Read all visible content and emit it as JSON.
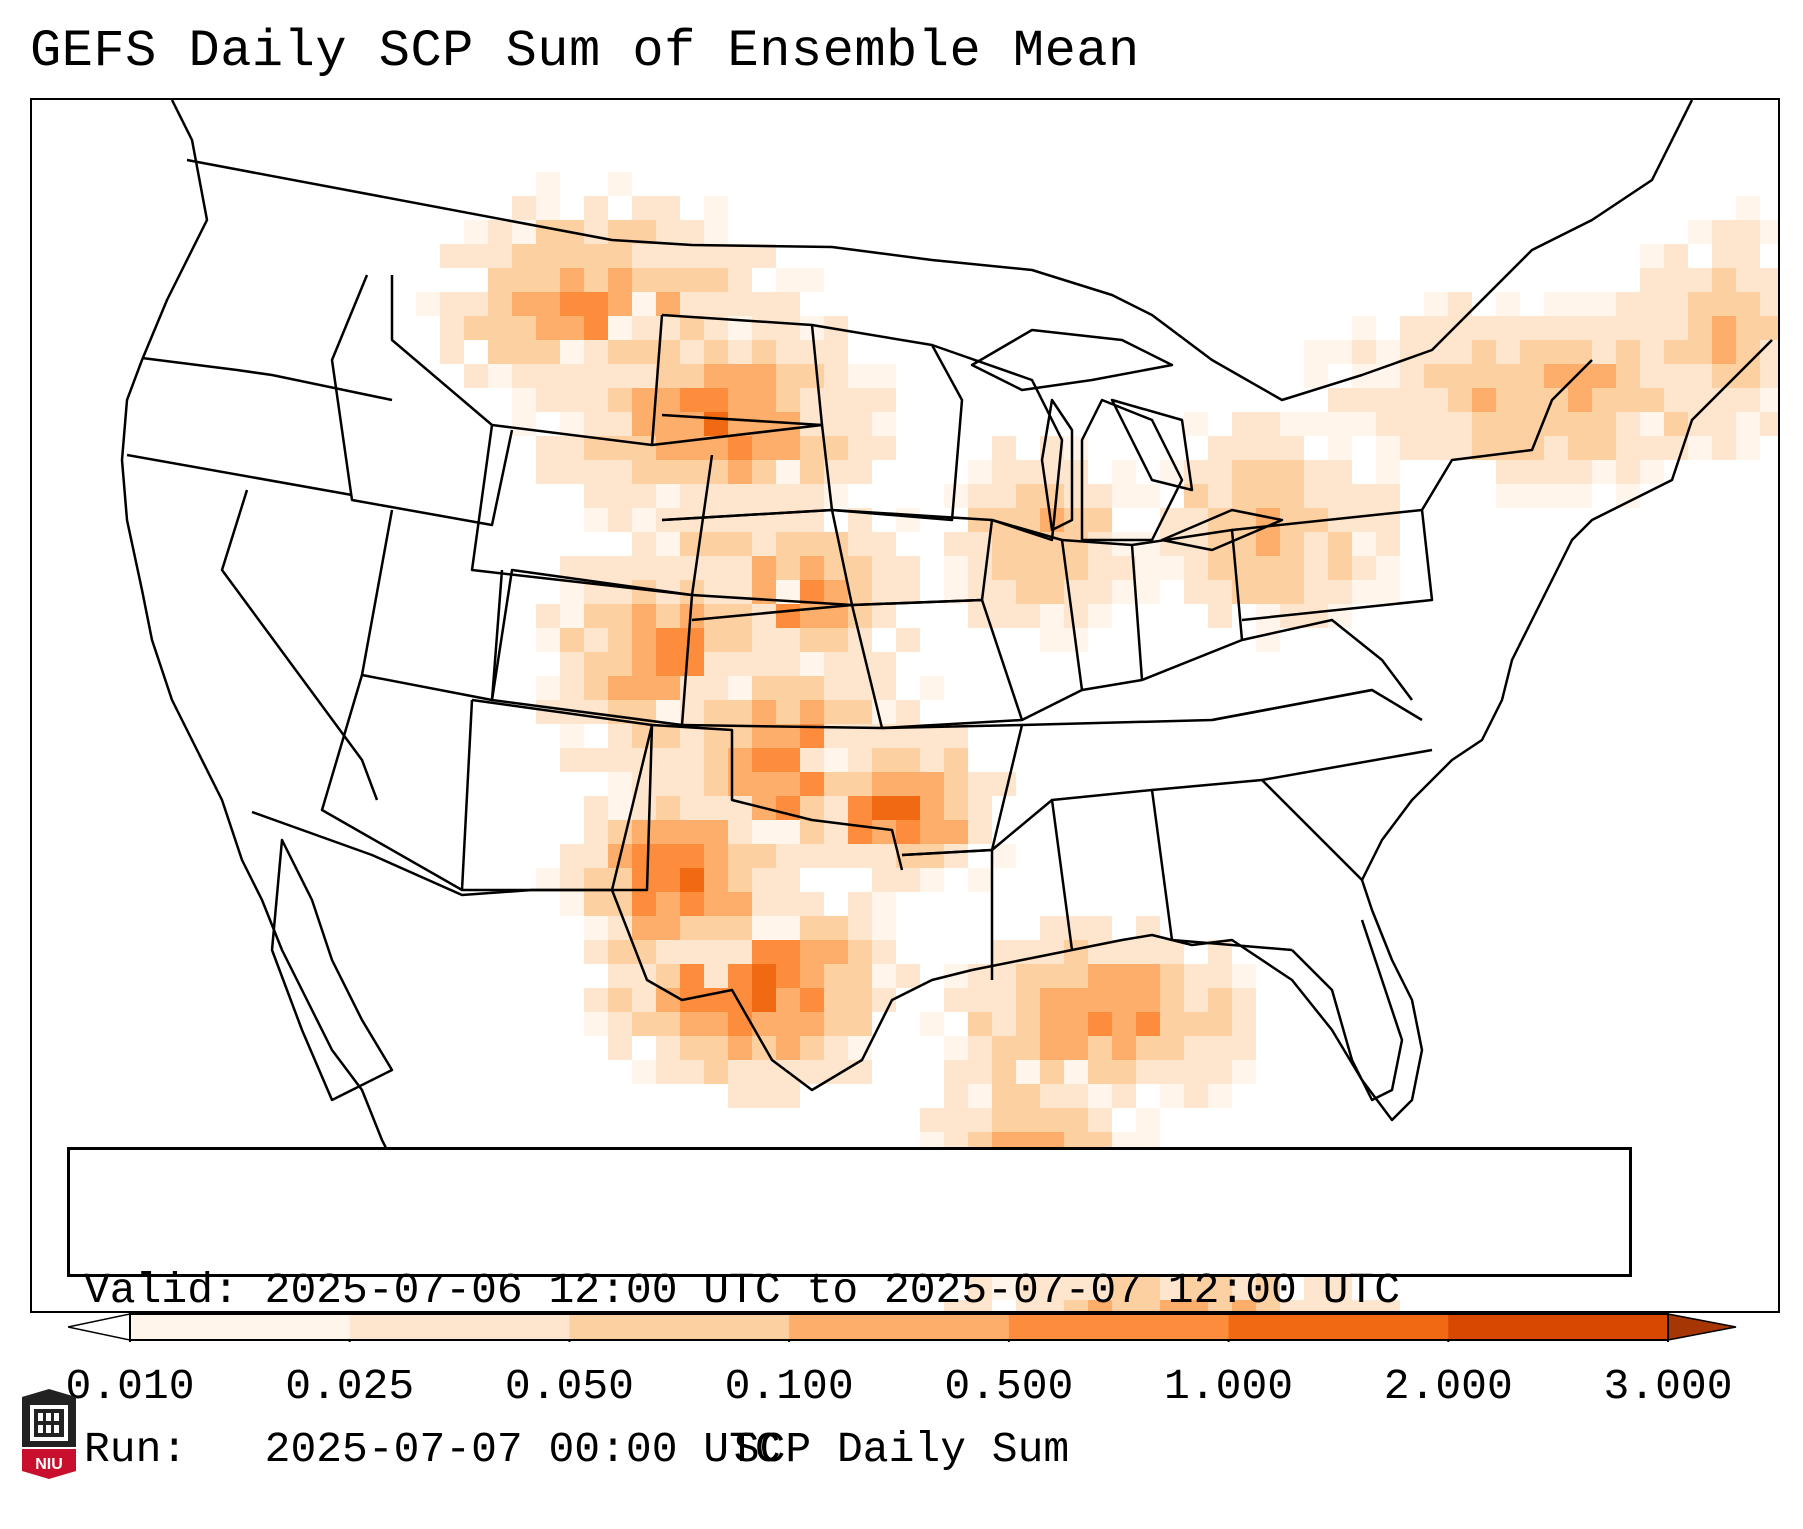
{
  "title": "GEFS Daily SCP Sum of Ensemble Mean",
  "info": {
    "valid_label": "Valid:",
    "valid_text": "2025-07-06 12:00 UTC to 2025-07-07 12:00 UTC",
    "run_label": "Run:",
    "run_text": "2025-07-07 00:00 UTC"
  },
  "colorbar": {
    "label": "SCP Daily Sum",
    "ticks": [
      "0.010",
      "0.025",
      "0.050",
      "0.100",
      "0.500",
      "1.000",
      "2.000",
      "3.000"
    ],
    "colors": [
      "#fff5eb",
      "#fee6ce",
      "#fdd0a2",
      "#fdae6b",
      "#fd8d3c",
      "#f16913",
      "#d94801",
      "#a63603"
    ],
    "extend": "both"
  },
  "logo": {
    "text": "NIU"
  },
  "map": {
    "region": "CONUS",
    "field": "SCP daily sum",
    "hotspots": [
      {
        "name": "northern-plains",
        "level": 4
      },
      {
        "name": "central-plains",
        "level": 4
      },
      {
        "name": "southern-plains",
        "level": 5
      },
      {
        "name": "west-texas",
        "level": 5
      },
      {
        "name": "gulf-coast",
        "level": 4
      },
      {
        "name": "great-lakes",
        "level": 3
      },
      {
        "name": "northeast",
        "level": 3
      }
    ]
  }
}
